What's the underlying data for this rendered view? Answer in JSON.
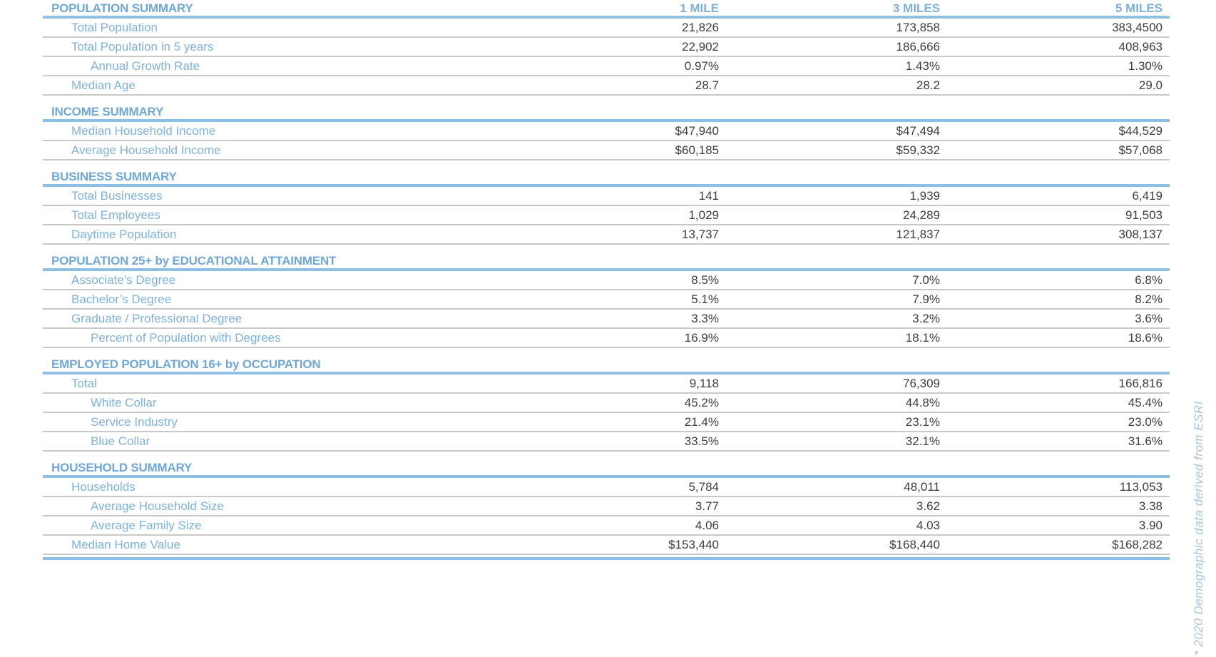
{
  "report": {
    "columns": [
      "1 MILE",
      "3 MILES",
      "5 MILES"
    ],
    "footnote": "* 2020 Demographic data derived from ESRI",
    "colors": {
      "section_title": "#6fa8d8",
      "column_header": "#7db1dc",
      "row_label": "#7fb2dc",
      "value_text": "#3d3d3d",
      "rule_blue": "#8ebfe5",
      "rule_gray": "#c9c9c9",
      "footnote_text": "#a6c6e1"
    },
    "sections": [
      {
        "title": "POPULATION SUMMARY",
        "rows": [
          {
            "label": "Total Population",
            "indent": 1,
            "values": [
              "21,826",
              "173,858",
              "383,4500"
            ]
          },
          {
            "label": "Total Population in 5 years",
            "indent": 1,
            "values": [
              "22,902",
              "186,666",
              "408,963"
            ]
          },
          {
            "label": "Annual Growth Rate",
            "indent": 2,
            "values": [
              "0.97%",
              "1.43%",
              "1.30%"
            ]
          },
          {
            "label": "Median Age",
            "indent": 1,
            "values": [
              "28.7",
              "28.2",
              "29.0"
            ]
          }
        ]
      },
      {
        "title": "INCOME SUMMARY",
        "rows": [
          {
            "label": "Median Household Income",
            "indent": 1,
            "values": [
              "$47,940",
              "$47,494",
              "$44,529"
            ]
          },
          {
            "label": "Average Household Income",
            "indent": 1,
            "values": [
              "$60,185",
              "$59,332",
              "$57,068"
            ]
          }
        ]
      },
      {
        "title": "BUSINESS SUMMARY",
        "rows": [
          {
            "label": "Total Businesses",
            "indent": 1,
            "values": [
              "141",
              "1,939",
              "6,419"
            ]
          },
          {
            "label": "Total Employees",
            "indent": 1,
            "values": [
              "1,029",
              "24,289",
              "91,503"
            ]
          },
          {
            "label": "Daytime Population",
            "indent": 1,
            "values": [
              "13,737",
              "121,837",
              "308,137"
            ]
          }
        ]
      },
      {
        "title": "POPULATION 25+ by EDUCATIONAL ATTAINMENT",
        "rows": [
          {
            "label": "Associate’s Degree",
            "indent": 1,
            "values": [
              "8.5%",
              "7.0%",
              "6.8%"
            ]
          },
          {
            "label": "Bachelor’s Degree",
            "indent": 1,
            "values": [
              "5.1%",
              "7.9%",
              "8.2%"
            ]
          },
          {
            "label": "Graduate / Professional Degree",
            "indent": 1,
            "values": [
              "3.3%",
              "3.2%",
              "3.6%"
            ]
          },
          {
            "label": "Percent of Population with Degrees",
            "indent": 2,
            "values": [
              "16.9%",
              "18.1%",
              "18.6%"
            ]
          }
        ]
      },
      {
        "title": "EMPLOYED POPULATION 16+ by OCCUPATION",
        "rows": [
          {
            "label": "Total",
            "indent": 1,
            "values": [
              "9,118",
              "76,309",
              "166,816"
            ]
          },
          {
            "label": "White Collar",
            "indent": 2,
            "values": [
              "45.2%",
              "44.8%",
              "45.4%"
            ]
          },
          {
            "label": "Service Industry",
            "indent": 2,
            "values": [
              "21.4%",
              "23.1%",
              "23.0%"
            ]
          },
          {
            "label": "Blue Collar",
            "indent": 2,
            "values": [
              "33.5%",
              "32.1%",
              "31.6%"
            ]
          }
        ]
      },
      {
        "title": "HOUSEHOLD SUMMARY",
        "rows": [
          {
            "label": "Households",
            "indent": 1,
            "values": [
              "5,784",
              "48,011",
              "113,053"
            ]
          },
          {
            "label": "Average Household Size",
            "indent": 2,
            "values": [
              "3.77",
              "3.62",
              "3.38"
            ]
          },
          {
            "label": "Average Family Size",
            "indent": 2,
            "values": [
              "4.06",
              "4.03",
              "3.90"
            ]
          },
          {
            "label": "Median Home Value",
            "indent": 1,
            "values": [
              "$153,440",
              "$168,440",
              "$168,282"
            ]
          }
        ]
      }
    ]
  }
}
